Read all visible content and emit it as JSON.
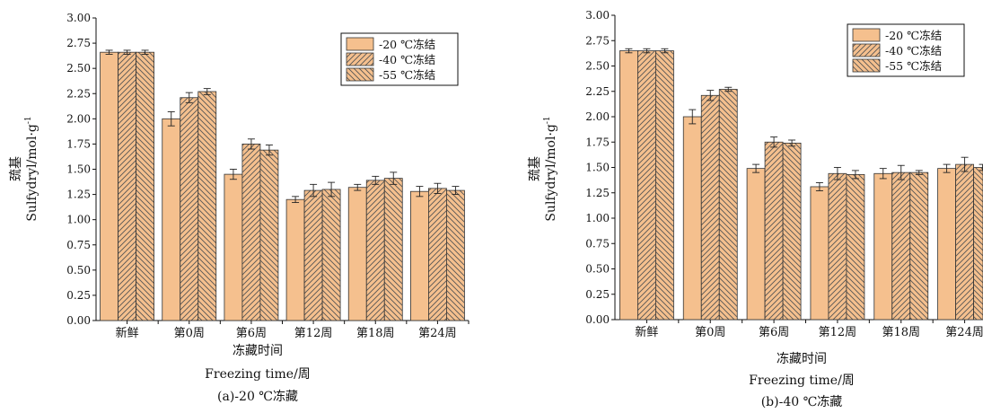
{
  "chart_data": [
    {
      "type": "bar",
      "categories": [
        "新鲜",
        "第0周",
        "第6周",
        "第12周",
        "第18周",
        "第24周"
      ],
      "series": [
        {
          "name": "-20 ℃冻结",
          "values": [
            2.66,
            2.0,
            1.45,
            1.2,
            1.32,
            1.28
          ],
          "errors": [
            0.02,
            0.07,
            0.05,
            0.03,
            0.03,
            0.05
          ]
        },
        {
          "name": "-40 ℃冻结",
          "values": [
            2.66,
            2.21,
            1.75,
            1.29,
            1.39,
            1.31
          ],
          "errors": [
            0.02,
            0.05,
            0.05,
            0.06,
            0.04,
            0.05
          ]
        },
        {
          "name": "-55 ℃冻结",
          "values": [
            2.66,
            2.27,
            1.69,
            1.3,
            1.41,
            1.29
          ],
          "errors": [
            0.02,
            0.03,
            0.05,
            0.07,
            0.06,
            0.04
          ]
        }
      ],
      "yticks": [
        "0.00",
        "0.25",
        "0.50",
        "0.75",
        "1.00",
        "1.25",
        "1.50",
        "1.75",
        "2.00",
        "2.25",
        "2.50",
        "2.75",
        "3.00"
      ],
      "ylim": [
        0,
        3.0
      ],
      "ylabel_cn": "巯基",
      "ylabel": "Sulfydryl/mol·g",
      "ylabel_sup": "-1",
      "xlabel_cn": "冻藏时间",
      "xlabel": "Freezing time/周",
      "caption": "(a)-20 ℃冻藏",
      "legend_position": "top-right"
    },
    {
      "type": "bar",
      "categories": [
        "新鲜",
        "第0周",
        "第6周",
        "第12周",
        "第18周",
        "第24周"
      ],
      "series": [
        {
          "name": "-20 ℃冻结",
          "values": [
            2.65,
            2.0,
            1.49,
            1.31,
            1.44,
            1.49
          ],
          "errors": [
            0.02,
            0.07,
            0.04,
            0.04,
            0.05,
            0.04
          ]
        },
        {
          "name": "-40 ℃冻结",
          "values": [
            2.65,
            2.21,
            1.75,
            1.44,
            1.45,
            1.53
          ],
          "errors": [
            0.02,
            0.05,
            0.05,
            0.06,
            0.07,
            0.07
          ]
        },
        {
          "name": "-55 ℃冻结",
          "values": [
            2.65,
            2.27,
            1.74,
            1.43,
            1.45,
            1.5
          ],
          "errors": [
            0.02,
            0.02,
            0.03,
            0.04,
            0.02,
            0.03
          ]
        }
      ],
      "yticks": [
        "0.00",
        "0.25",
        "0.50",
        "0.75",
        "1.00",
        "1.25",
        "1.50",
        "1.75",
        "2.00",
        "2.25",
        "2.50",
        "2.75",
        "3.00"
      ],
      "ylim": [
        0,
        3.0
      ],
      "ylabel_cn": "巯基",
      "ylabel": "Sulfydryl/mol·g",
      "ylabel_sup": "-1",
      "xlabel_cn": "冻藏时间",
      "xlabel": "Freezing time/周",
      "caption": "(b)-40 ℃冻藏",
      "legend_position": "top-right"
    }
  ],
  "colors": {
    "bar_fill": "#f5c08e",
    "bar_stroke": "#333333",
    "hatch_line": "#555555"
  }
}
